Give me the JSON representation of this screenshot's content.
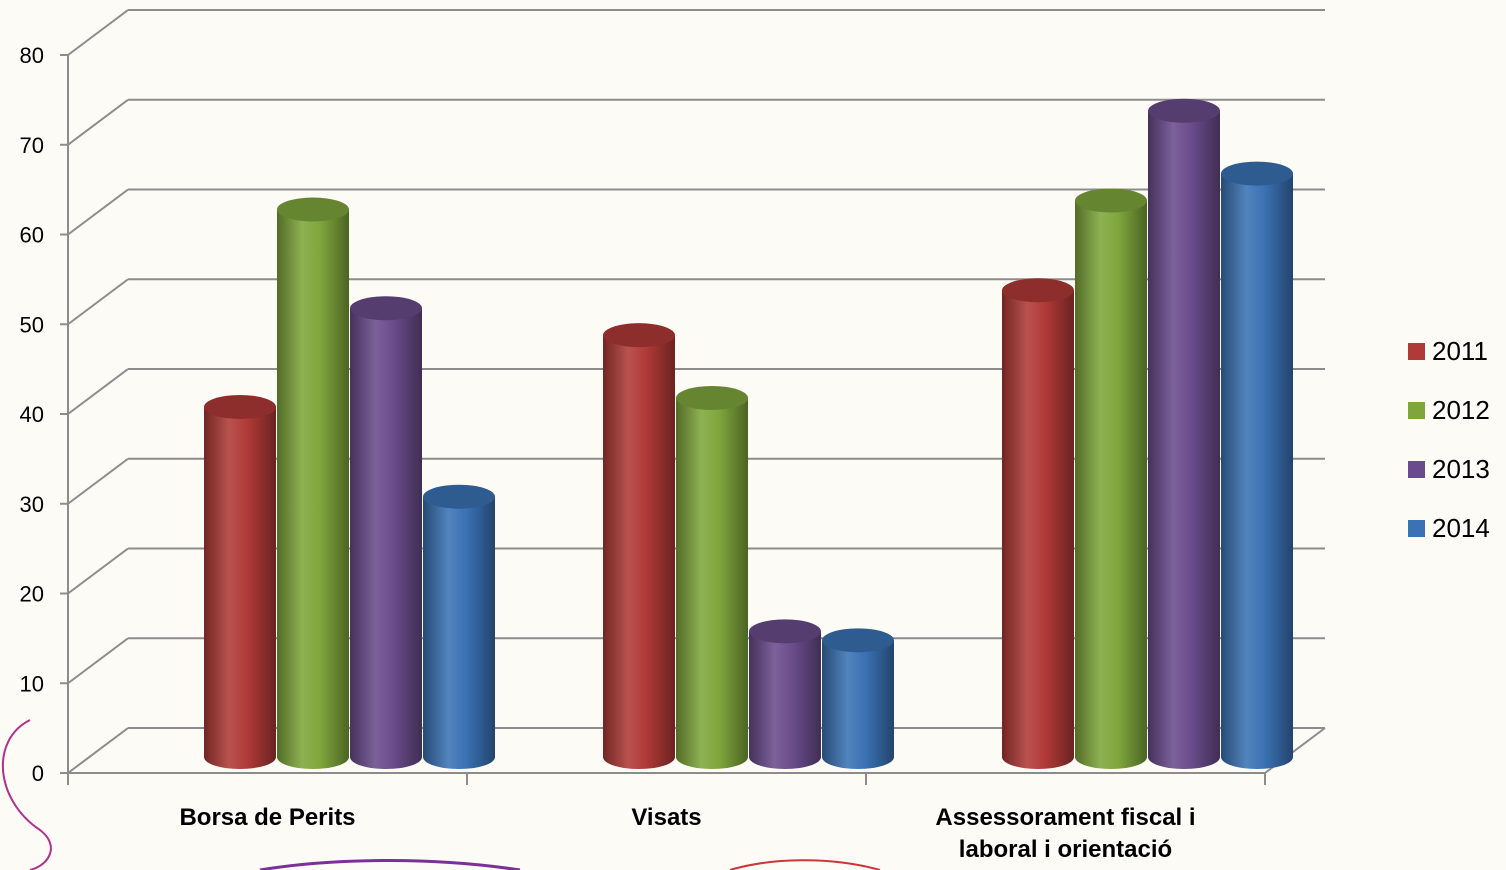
{
  "chart_data": {
    "type": "bar",
    "title": "",
    "xlabel": "",
    "ylabel": "",
    "ylim": [
      0,
      80
    ],
    "yticks": [
      0,
      10,
      20,
      30,
      40,
      50,
      60,
      70,
      80
    ],
    "yticks_text": [
      "0",
      "10",
      "20",
      "30",
      "40",
      "50",
      "60",
      "70",
      "80"
    ],
    "grid": true,
    "legend": "right",
    "three_d": true,
    "categories": [
      [
        "Borsa de Perits"
      ],
      [
        "Visats"
      ],
      [
        "Assessorament fiscal i",
        "laboral i orientació"
      ]
    ],
    "series": [
      {
        "name": "2011",
        "color": "#b03a37",
        "values": [
          39,
          47,
          52
        ]
      },
      {
        "name": "2012",
        "color": "#7fa63c",
        "values": [
          61,
          40,
          62
        ]
      },
      {
        "name": "2013",
        "color": "#6a4c8c",
        "values": [
          50,
          14,
          72
        ]
      },
      {
        "name": "2014",
        "color": "#3a72b4",
        "values": [
          29,
          13,
          65
        ]
      }
    ]
  },
  "decor": {
    "swirl_colors": [
      "#b0308a",
      "#7a2f9a",
      "#d0343a"
    ]
  }
}
